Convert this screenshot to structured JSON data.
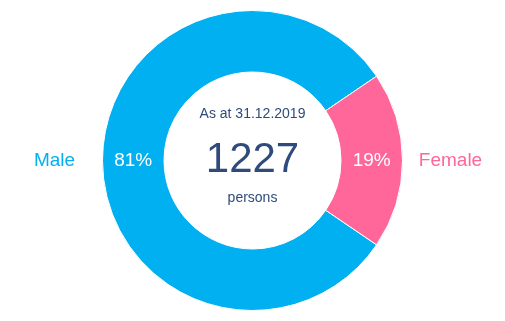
{
  "chart_data": {
    "type": "doughnut",
    "categories": [
      "Male",
      "Female"
    ],
    "values": [
      81,
      19
    ],
    "value_labels": [
      "81%",
      "19%"
    ],
    "data_labels": true,
    "colors": [
      "#00b0f0",
      "#ff6699"
    ],
    "center_label": "As at 31.12.2019",
    "total": 1227,
    "total_unit": "persons"
  }
}
